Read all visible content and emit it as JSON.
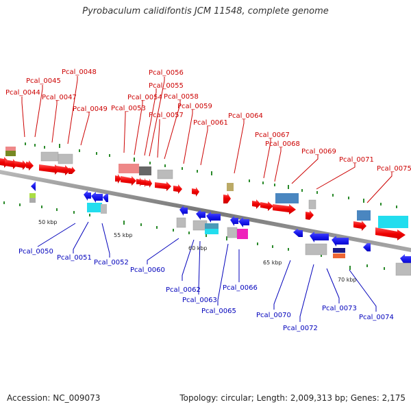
{
  "title": "Pyrobaculum calidifontis JCM 11548, complete genome",
  "accession_label": "Accession: NC_009073",
  "topology_label": "Topology: circular; Length: 2,009,313 bp; Genes: 2,175",
  "kbp_labels": [
    "50 kbp",
    "55 kbp",
    "60 kbp",
    "65 kbp",
    "70 kbp"
  ],
  "top_genes": [
    "Pcal_0044",
    "Pcal_0045",
    "Pcal_0047",
    "Pcal_0048",
    "Pcal_0049",
    "Pcal_0053",
    "Pcal_0054",
    "Pcal_0055",
    "Pcal_0056",
    "Pcal_0057",
    "Pcal_0058",
    "Pcal_0059",
    "Pcal_0061",
    "Pcal_0064",
    "Pcal_0067",
    "Pcal_0068",
    "Pcal_0069",
    "Pcal_0071",
    "Pcal_0075"
  ],
  "bottom_genes": [
    "Pcal_0050",
    "Pcal_0051",
    "Pcal_0052",
    "Pcal_0060",
    "Pcal_0062",
    "Pcal_0063",
    "Pcal_0065",
    "Pcal_0066",
    "Pcal_0070",
    "Pcal_0072",
    "Pcal_0073",
    "Pcal_0074"
  ],
  "colors": {
    "forward_gene": "#ee0000",
    "reverse_gene": "#1a1aee",
    "label_forward": "#cc0000",
    "label_reverse": "#0000bb",
    "backbone": "#888888"
  }
}
